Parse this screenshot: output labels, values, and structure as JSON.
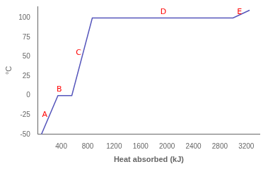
{
  "chart_data": {
    "type": "line",
    "x": [
      100,
      350,
      560,
      870,
      3000,
      3250
    ],
    "values": [
      -50,
      0,
      0,
      100,
      100,
      110
    ],
    "color": "#5555bb",
    "xlabel": "Heat absorbed (kJ)",
    "ylabel": "°C",
    "xlim": [
      50,
      3400
    ],
    "ylim": [
      -50,
      115
    ],
    "xticks": [
      400,
      800,
      1200,
      1600,
      2000,
      2400,
      2800,
      3200
    ],
    "yticks": [
      -50,
      -25,
      0,
      25,
      50,
      75,
      100
    ],
    "grid": false,
    "annotations": [
      {
        "text": "A",
        "x": 110,
        "y": -30,
        "color": "red"
      },
      {
        "text": "B",
        "x": 330,
        "y": 3,
        "color": "red"
      },
      {
        "text": "C",
        "x": 620,
        "y": 50,
        "color": "red"
      },
      {
        "text": "D",
        "x": 1900,
        "y": 103,
        "color": "red"
      },
      {
        "text": "E",
        "x": 3060,
        "y": 103,
        "color": "red"
      }
    ]
  }
}
